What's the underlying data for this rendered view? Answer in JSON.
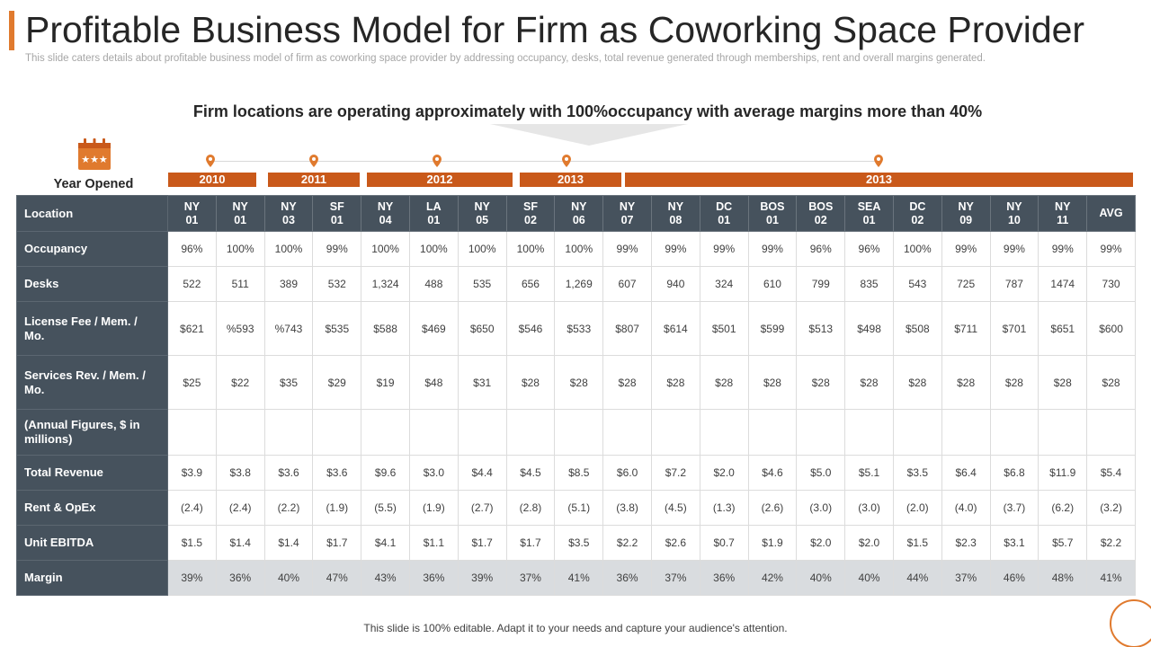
{
  "title": "Profitable Business Model for Firm as Coworking Space Provider",
  "subtitle": "This slide caters details about profitable business model of firm as coworking space provider  by addressing occupancy, desks, total revenue  generated through memberships,  rent and overall  margins generated.",
  "headline": "Firm locations are operating approximately with 100%occupancy with average margins more than 40%",
  "year_opened_label": "Year Opened",
  "years": [
    "2010",
    "2011",
    "2012",
    "2013",
    "2013"
  ],
  "table": {
    "columns": [
      [
        "NY",
        "01"
      ],
      [
        "NY",
        "01"
      ],
      [
        "NY",
        "03"
      ],
      [
        "SF",
        "01"
      ],
      [
        "NY",
        "04"
      ],
      [
        "LA",
        "01"
      ],
      [
        "NY",
        "05"
      ],
      [
        "SF",
        "02"
      ],
      [
        "NY",
        "06"
      ],
      [
        "NY",
        "07"
      ],
      [
        "NY",
        "08"
      ],
      [
        "DC",
        "01"
      ],
      [
        "BOS",
        "01"
      ],
      [
        "BOS",
        "02"
      ],
      [
        "SEA",
        "01"
      ],
      [
        "DC",
        "02"
      ],
      [
        "NY",
        "09"
      ],
      [
        "NY",
        "10"
      ],
      [
        "NY",
        "11"
      ],
      [
        "AVG",
        ""
      ]
    ],
    "header_label": "Location",
    "rows": [
      {
        "label": "Occupancy",
        "values": [
          "96%",
          "100%",
          "100%",
          "99%",
          "100%",
          "100%",
          "100%",
          "100%",
          "100%",
          "99%",
          "99%",
          "99%",
          "99%",
          "96%",
          "96%",
          "100%",
          "99%",
          "99%",
          "99%",
          "99%"
        ]
      },
      {
        "label": "Desks",
        "values": [
          "522",
          "511",
          "389",
          "532",
          "1,324",
          "488",
          "535",
          "656",
          "1,269",
          "607",
          "940",
          "324",
          "610",
          "799",
          "835",
          "543",
          "725",
          "787",
          "1474",
          "730"
        ]
      },
      {
        "label": "License Fee / Mem. / Mo.",
        "values": [
          "$621",
          "%593",
          "%743",
          "$535",
          "$588",
          "$469",
          "$650",
          "$546",
          "$533",
          "$807",
          "$614",
          "$501",
          "$599",
          "$513",
          "$498",
          "$508",
          "$711",
          "$701",
          "$651",
          "$600"
        ]
      },
      {
        "label": "Services  Rev. / Mem. / Mo.",
        "values": [
          "$25",
          "$22",
          "$35",
          "$29",
          "$19",
          "$48",
          "$31",
          "$28",
          "$28",
          "$28",
          "$28",
          "$28",
          "$28",
          "$28",
          "$28",
          "$28",
          "$28",
          "$28",
          "$28",
          "$28"
        ]
      },
      {
        "label": "(Annual Figures, $ in millions)",
        "values": [
          "",
          "",
          "",
          "",
          "",
          "",
          "",
          "",
          "",
          "",
          "",
          "",
          "",
          "",
          "",
          "",
          "",
          "",
          "",
          ""
        ]
      },
      {
        "label": "Total Revenue",
        "values": [
          "$3.9",
          "$3.8",
          "$3.6",
          "$3.6",
          "$9.6",
          "$3.0",
          "$4.4",
          "$4.5",
          "$8.5",
          "$6.0",
          "$7.2",
          "$2.0",
          "$4.6",
          "$5.0",
          "$5.1",
          "$3.5",
          "$6.4",
          "$6.8",
          "$11.9",
          "$5.4"
        ]
      },
      {
        "label": "Rent & OpEx",
        "values": [
          "(2.4)",
          "(2.4)",
          "(2.2)",
          "(1.9)",
          "(5.5)",
          "(1.9)",
          "(2.7)",
          "(2.8)",
          "(5.1)",
          "(3.8)",
          "(4.5)",
          "(1.3)",
          "(2.6)",
          "(3.0)",
          "(3.0)",
          "(2.0)",
          "(4.0)",
          "(3.7)",
          "(6.2)",
          "(3.2)"
        ]
      },
      {
        "label": "Unit EBITDA",
        "values": [
          "$1.5",
          "$1.4",
          "$1.4",
          "$1.7",
          "$4.1",
          "$1.1",
          "$1.7",
          "$1.7",
          "$3.5",
          "$2.2",
          "$2.6",
          "$0.7",
          "$1.9",
          "$2.0",
          "$2.0",
          "$1.5",
          "$2.3",
          "$3.1",
          "$5.7",
          "$2.2"
        ]
      },
      {
        "label": "Margin",
        "values": [
          "39%",
          "36%",
          "40%",
          "47%",
          "43%",
          "36%",
          "39%",
          "37%",
          "41%",
          "36%",
          "37%",
          "36%",
          "42%",
          "40%",
          "40%",
          "44%",
          "37%",
          "46%",
          "48%",
          "41%"
        ]
      }
    ]
  },
  "footer": "This slide is 100% editable. Adapt it to your needs and capture your audience's attention.",
  "colors": {
    "accent": "#e07a2e",
    "year_bar": "#c9591a",
    "label_bg": "#46525d",
    "margin_row_bg": "#d9dcdf"
  }
}
